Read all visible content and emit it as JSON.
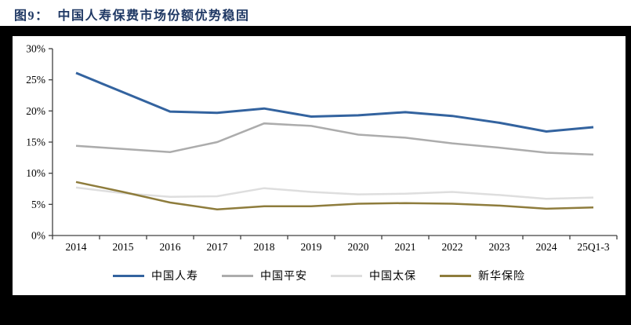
{
  "header": {
    "title": "图9：  中国人寿保费市场份额优势稳固"
  },
  "colors": {
    "title_navy": "#1F3864",
    "page_background": "#000000",
    "panel_background": "#ffffff",
    "axis_line": "#404040"
  },
  "chart_data": {
    "type": "line",
    "title": "图9：  中国人寿保费市场份额优势稳固",
    "categories": [
      "2014",
      "2015",
      "2016",
      "2017",
      "2018",
      "2019",
      "2020",
      "2021",
      "2022",
      "2023",
      "2024",
      "25Q1-3"
    ],
    "series": [
      {
        "name": "中国人寿",
        "color": "#33639F",
        "stroke_width": 3,
        "values": [
          26.1,
          23.0,
          19.9,
          19.7,
          20.4,
          19.1,
          19.3,
          19.8,
          19.2,
          18.1,
          16.7,
          17.4
        ]
      },
      {
        "name": "中国平安",
        "color": "#ACACAC",
        "stroke_width": 2.5,
        "values": [
          14.4,
          13.9,
          13.4,
          15.0,
          18.0,
          17.6,
          16.2,
          15.7,
          14.8,
          14.1,
          13.3,
          13.0
        ]
      },
      {
        "name": "中国太保",
        "color": "#DEDEDE",
        "stroke_width": 2.5,
        "values": [
          7.7,
          6.8,
          6.2,
          6.3,
          7.6,
          7.0,
          6.6,
          6.7,
          7.0,
          6.5,
          5.9,
          6.1
        ]
      },
      {
        "name": "新华保险",
        "color": "#8E7C3C",
        "stroke_width": 2.5,
        "values": [
          8.6,
          7.0,
          5.3,
          4.2,
          4.7,
          4.7,
          5.1,
          5.2,
          5.1,
          4.8,
          4.3,
          4.5
        ]
      }
    ],
    "xlabel": "",
    "ylabel": "",
    "ylim": [
      0,
      30
    ],
    "ytick_step": 5,
    "ytick_labels": [
      "0%",
      "5%",
      "10%",
      "15%",
      "20%",
      "25%",
      "30%"
    ],
    "grid": false,
    "legend_position": "bottom"
  }
}
